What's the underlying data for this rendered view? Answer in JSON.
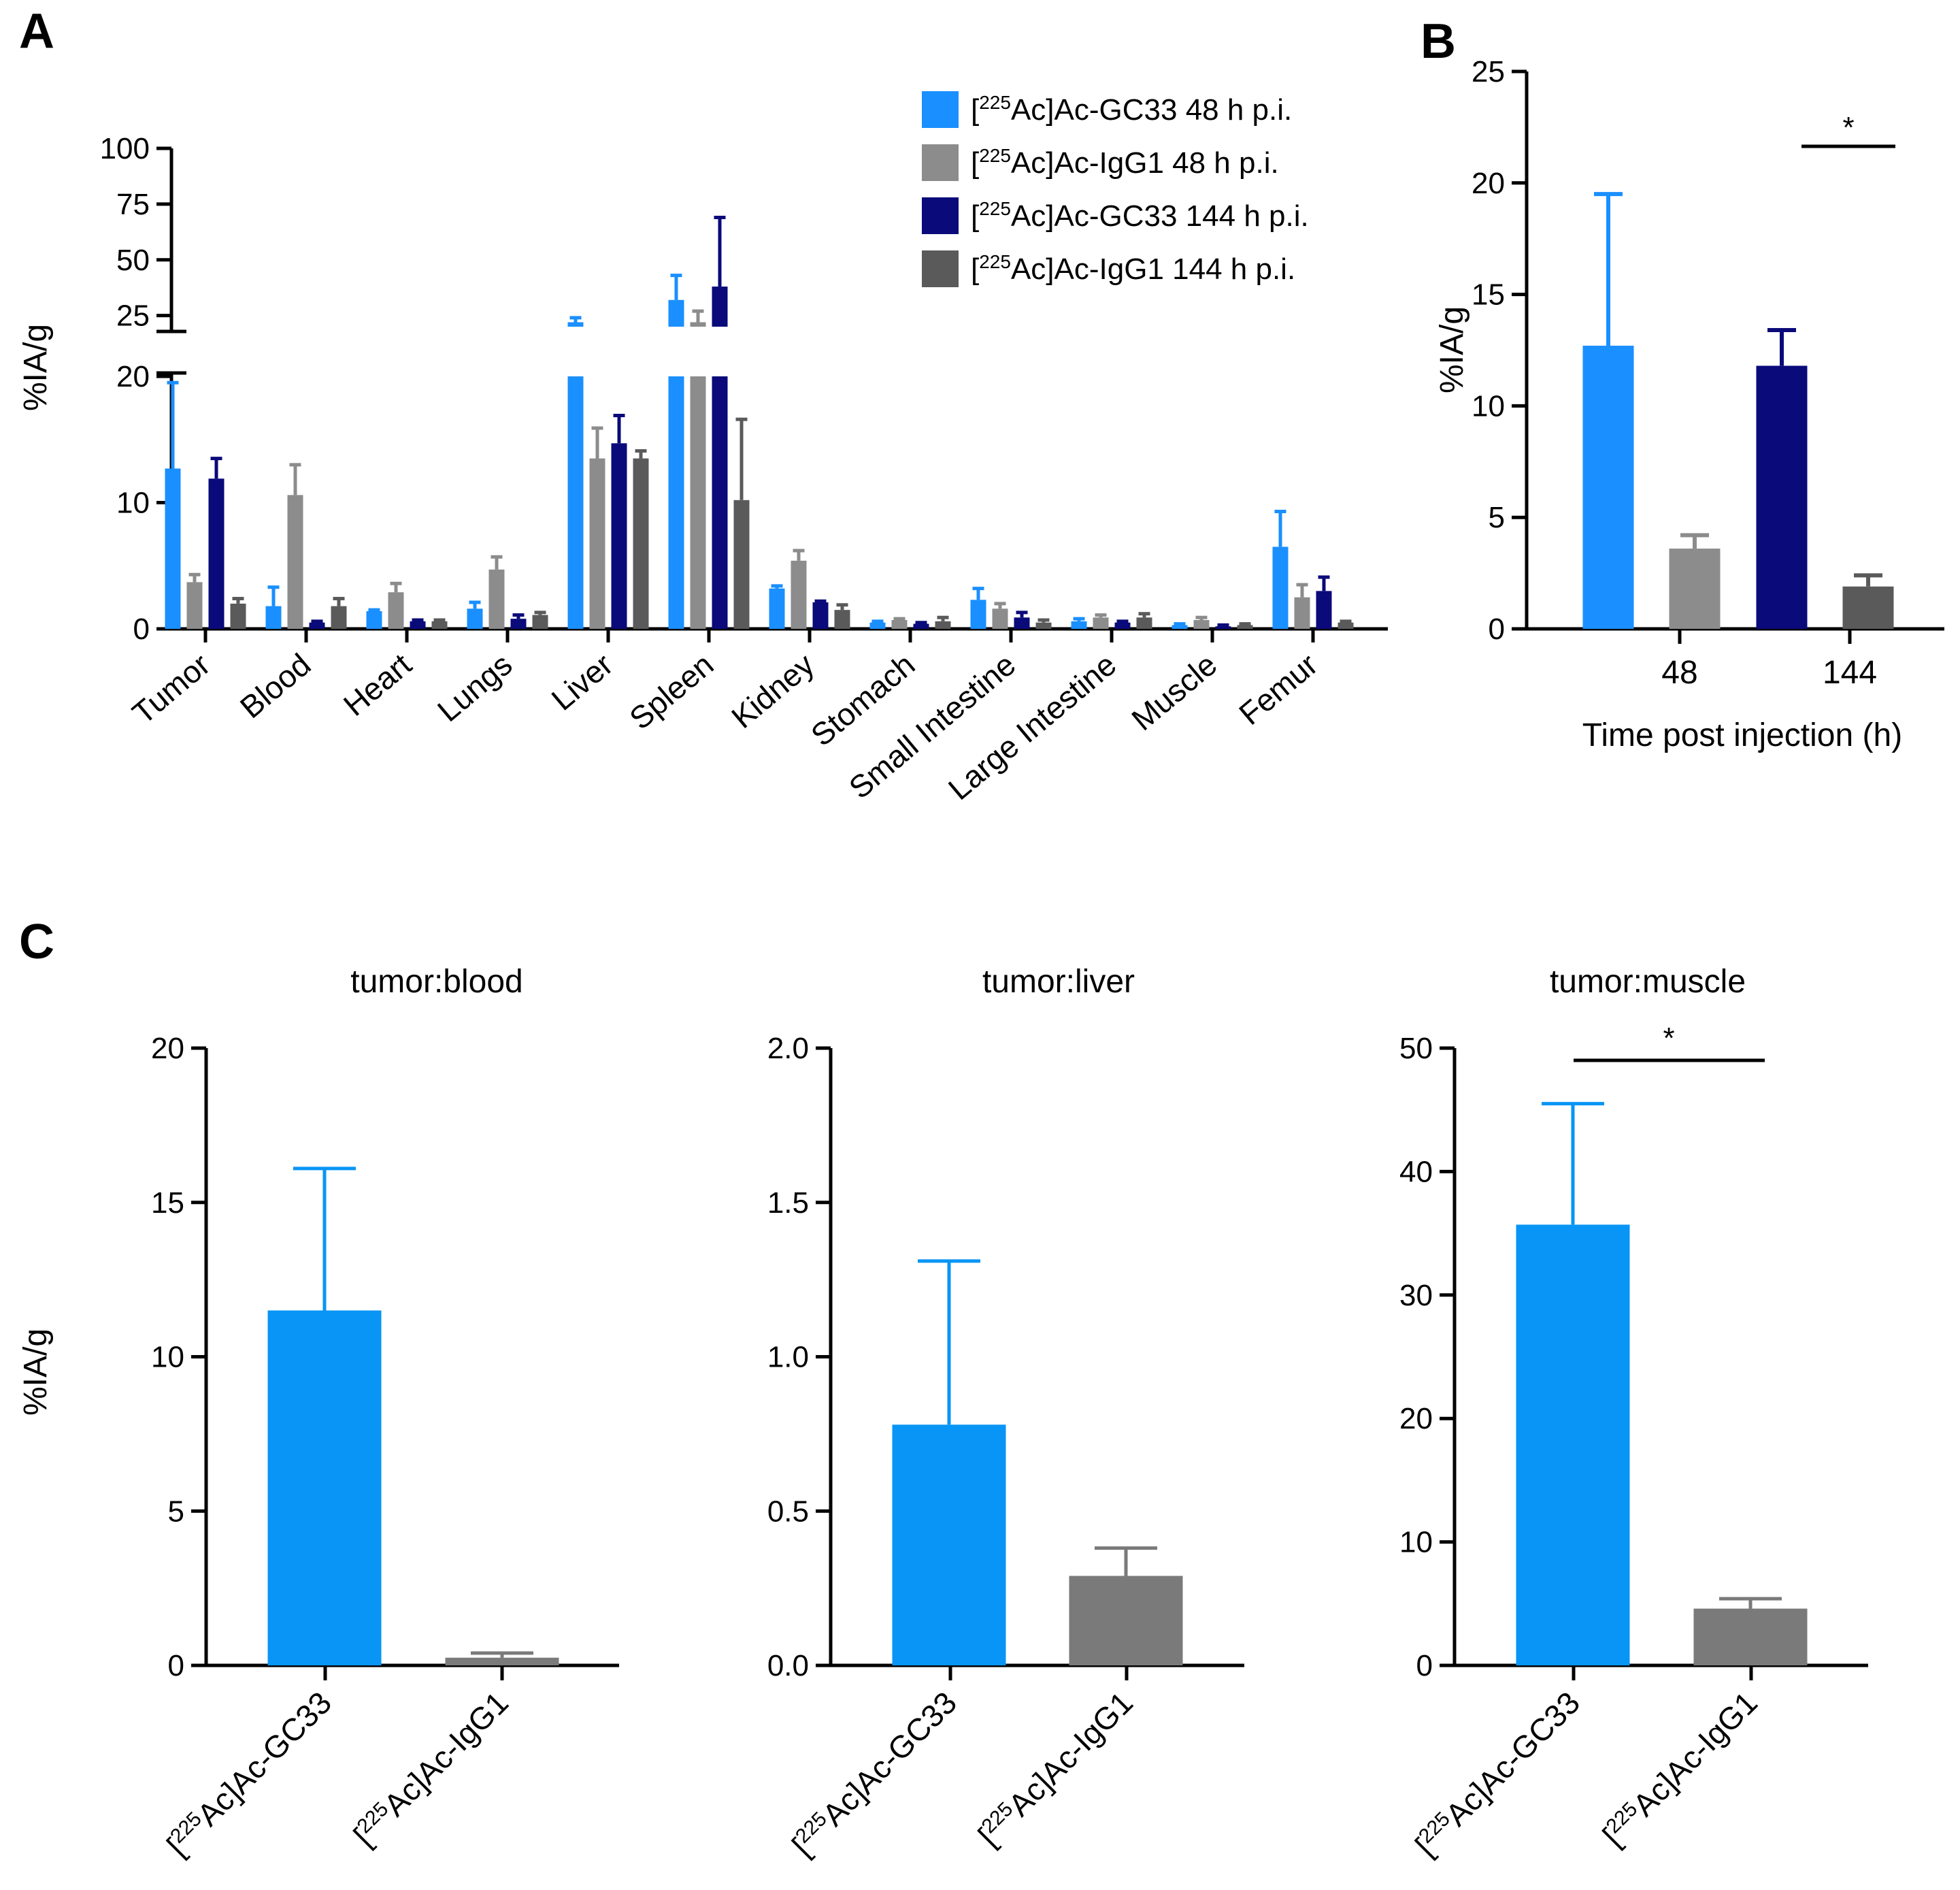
{
  "colors": {
    "gc33_48": "#1a8fff",
    "igg1_48": "#8c8c8c",
    "gc33_144": "#0a0a7a",
    "igg1_144": "#5a5a5a",
    "c_gc33": "#0895f5",
    "c_igg1": "#7a7a7a"
  },
  "chart_data": [
    {
      "id": "A",
      "type": "bar",
      "panel_label": "A",
      "ylabel": "%IA/g",
      "ylim_lower": [
        0,
        20
      ],
      "ylim_upper": [
        20,
        100
      ],
      "upper_ticks": [
        "25",
        "50",
        "75",
        "100"
      ],
      "lower_ticks": [
        "0",
        "10",
        "20"
      ],
      "categories": [
        "Tumor",
        "Blood",
        "Heart",
        "Lungs",
        "Liver",
        "Spleen",
        "Kidney",
        "Stomach",
        "Small Intestine",
        "Large Intestine",
        "Muscle",
        "Femur"
      ],
      "series": [
        {
          "name": "[225Ac]Ac-GC33 48 h p.i.",
          "legend_pre": "[",
          "legend_sup": "225",
          "legend_post": "Ac]Ac-GC33 48 h p.i.",
          "color_key": "gc33_48",
          "values": [
            12.7,
            1.8,
            1.4,
            1.6,
            22,
            32,
            3.2,
            0.5,
            2.3,
            0.6,
            0.3,
            6.5
          ],
          "errors": [
            6.8,
            1.5,
            0.1,
            0.5,
            2,
            11,
            0.2,
            0.1,
            0.9,
            0.2,
            0.1,
            2.8
          ]
        },
        {
          "name": "[225Ac]Ac-IgG1 48 h p.i.",
          "legend_pre": "[",
          "legend_sup": "225",
          "legend_post": "Ac]Ac-IgG1 48 h p.i.",
          "color_key": "igg1_48",
          "values": [
            3.7,
            10.6,
            2.9,
            4.7,
            13.5,
            22,
            5.4,
            0.7,
            1.6,
            0.9,
            0.7,
            2.5
          ],
          "errors": [
            0.6,
            2.4,
            0.7,
            1.0,
            2.4,
            5,
            0.8,
            0.1,
            0.4,
            0.2,
            0.2,
            1.0
          ]
        },
        {
          "name": "[225Ac]Ac-GC33 144 h p.i.",
          "legend_pre": "[",
          "legend_sup": "225",
          "legend_post": "Ac]Ac-GC33 144 h p.i.",
          "color_key": "gc33_144",
          "values": [
            11.9,
            0.5,
            0.6,
            0.8,
            14.7,
            38,
            2.1,
            0.4,
            0.9,
            0.5,
            0.2,
            3.0
          ],
          "errors": [
            1.6,
            0.1,
            0.1,
            0.3,
            2.2,
            31,
            0.1,
            0.1,
            0.4,
            0.1,
            0.1,
            1.1
          ]
        },
        {
          "name": "[225Ac]Ac-IgG1 144 h p.i.",
          "legend_pre": "[",
          "legend_sup": "225",
          "legend_post": "Ac]Ac-IgG1 144 h p.i.",
          "color_key": "igg1_144",
          "values": [
            2.0,
            1.8,
            0.6,
            1.1,
            13.5,
            10.2,
            1.5,
            0.6,
            0.5,
            0.9,
            0.3,
            0.5
          ],
          "errors": [
            0.4,
            0.6,
            0.1,
            0.2,
            0.6,
            6.4,
            0.4,
            0.3,
            0.2,
            0.3,
            0.1,
            0.1
          ]
        }
      ]
    },
    {
      "id": "B",
      "type": "bar",
      "panel_label": "B",
      "ylabel": "%IA/g",
      "xlabel": "Time post injection (h)",
      "ylim": [
        0,
        25
      ],
      "yticks": [
        "0",
        "5",
        "10",
        "15",
        "20",
        "25"
      ],
      "groups": [
        "48",
        "144"
      ],
      "bars": [
        {
          "group": 0,
          "color_key": "gc33_48",
          "value": 12.7,
          "error": 6.8
        },
        {
          "group": 0,
          "color_key": "igg1_48",
          "value": 3.6,
          "error": 0.6
        },
        {
          "group": 1,
          "color_key": "gc33_144",
          "value": 11.8,
          "error": 1.6
        },
        {
          "group": 1,
          "color_key": "igg1_144",
          "value": 1.9,
          "error": 0.5
        }
      ],
      "significance": "*"
    },
    {
      "id": "C1",
      "type": "bar",
      "panel_label": "C",
      "title": "tumor:blood",
      "ylabel": "%IA/g",
      "ylim": [
        0,
        20
      ],
      "yticks": [
        "0",
        "5",
        "10",
        "15",
        "20"
      ],
      "categories": [
        {
          "pre": "[",
          "sup": "225",
          "post": "Ac]Ac-GC33"
        },
        {
          "pre": "[",
          "sup": "225",
          "post": "Ac]Ac-IgG1"
        }
      ],
      "values": [
        11.5,
        0.25
      ],
      "errors": [
        4.6,
        0.15
      ],
      "color_keys": [
        "c_gc33",
        "c_igg1"
      ]
    },
    {
      "id": "C2",
      "type": "bar",
      "title": "tumor:liver",
      "ylim": [
        0,
        2.0
      ],
      "yticks": [
        "0.0",
        "0.5",
        "1.0",
        "1.5",
        "2.0"
      ],
      "categories": [
        {
          "pre": "[",
          "sup": "225",
          "post": "Ac]Ac-GC33"
        },
        {
          "pre": "[",
          "sup": "225",
          "post": "Ac]Ac-IgG1"
        }
      ],
      "values": [
        0.78,
        0.29
      ],
      "errors": [
        0.53,
        0.09
      ],
      "color_keys": [
        "c_gc33",
        "c_igg1"
      ]
    },
    {
      "id": "C3",
      "type": "bar",
      "title": "tumor:muscle",
      "ylim": [
        0,
        50
      ],
      "yticks": [
        "0",
        "10",
        "20",
        "30",
        "40",
        "50"
      ],
      "categories": [
        {
          "pre": "[",
          "sup": "225",
          "post": "Ac]Ac-GC33"
        },
        {
          "pre": "[",
          "sup": "225",
          "post": "Ac]Ac-IgG1"
        }
      ],
      "values": [
        35.7,
        4.6
      ],
      "errors": [
        9.8,
        0.8
      ],
      "color_keys": [
        "c_gc33",
        "c_igg1"
      ],
      "significance": "*"
    }
  ]
}
